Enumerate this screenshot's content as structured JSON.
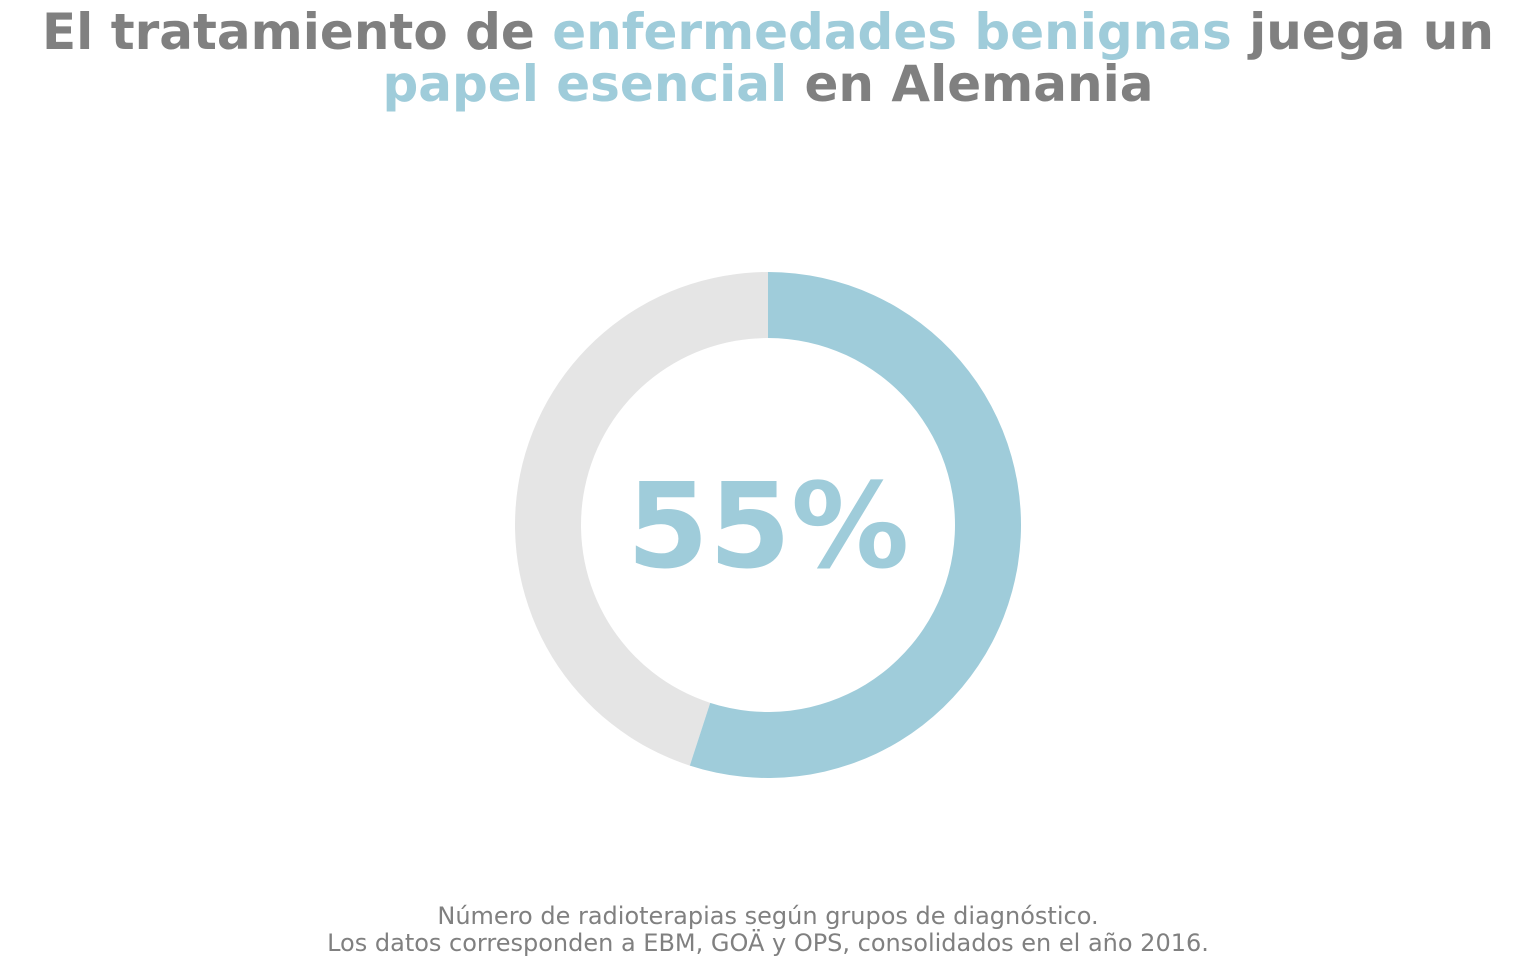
{
  "title": {
    "line1_part1": "El tratamiento de ",
    "line1_accent": "enfermedades benignas",
    "line1_part2": " juega un",
    "line2_accent": "papel esencial",
    "line2_part2": " en Alemania"
  },
  "caption": {
    "line1": "Número de radioterapias según grupos de diagnóstico.",
    "line2": "Los datos corresponden a EBM, GOÄ y OPS, consolidados en el año 2016."
  },
  "colors": {
    "accent": "#9fccda",
    "remainder": "#e5e5e5",
    "text": "#808080"
  },
  "chart_data": {
    "type": "pie",
    "style": "donut",
    "values": [
      55,
      45
    ],
    "center_label": "55%",
    "start": "top",
    "direction": "clockwise"
  }
}
